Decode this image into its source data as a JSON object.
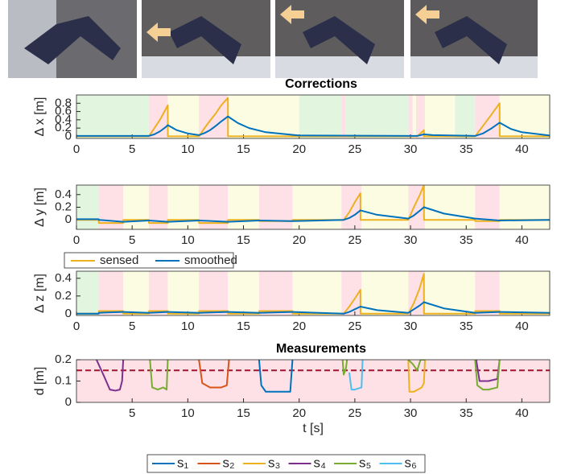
{
  "chart_data": [
    {
      "type": "line",
      "title": "Corrections",
      "ylabel": "Δ x [m]",
      "xlim": [
        0,
        42.5
      ],
      "xticks": [
        0,
        5,
        10,
        15,
        20,
        25,
        30,
        35,
        40
      ],
      "ylim": [
        -0.05,
        1.0
      ],
      "yticks": [
        0,
        0.2,
        0.4,
        0.6,
        0.8
      ],
      "regions": [
        {
          "start": 0,
          "end": 6.5,
          "color": "#e2f5df"
        },
        {
          "start": 6.5,
          "end": 8.2,
          "color": "#fde1e6"
        },
        {
          "start": 8.2,
          "end": 11,
          "color": "#fcfce2"
        },
        {
          "start": 11,
          "end": 13.6,
          "color": "#fde1e6"
        },
        {
          "start": 13.6,
          "end": 20,
          "color": "#fcfce2"
        },
        {
          "start": 20,
          "end": 23.8,
          "color": "#e2f5df"
        },
        {
          "start": 23.8,
          "end": 24.2,
          "color": "#fde1e6"
        },
        {
          "start": 24.2,
          "end": 29.8,
          "color": "#e2f5df"
        },
        {
          "start": 29.8,
          "end": 30.2,
          "color": "#fde1e6"
        },
        {
          "start": 30.2,
          "end": 30.5,
          "color": "#fcfce2"
        },
        {
          "start": 30.5,
          "end": 31.3,
          "color": "#fde1e6"
        },
        {
          "start": 31.3,
          "end": 34,
          "color": "#fcfce2"
        },
        {
          "start": 34,
          "end": 35.8,
          "color": "#e2f5df"
        },
        {
          "start": 35.8,
          "end": 38,
          "color": "#fde1e6"
        },
        {
          "start": 38,
          "end": 42.5,
          "color": "#fcfce2"
        }
      ],
      "x": [
        0,
        6.5,
        7,
        7.5,
        8,
        8.2,
        8.21,
        9,
        10,
        11,
        11.5,
        12,
        12.5,
        13,
        13.6,
        13.61,
        14.5,
        15.5,
        17,
        20,
        30.6,
        31.2,
        31.21,
        32,
        35.8,
        36.5,
        37.2,
        38,
        38.01,
        39,
        40,
        42.5
      ],
      "series": [
        {
          "color": "#edb120",
          "values": [
            0,
            0,
            0.2,
            0.4,
            0.65,
            0.75,
            0,
            0,
            0,
            0,
            0.2,
            0.38,
            0.55,
            0.75,
            0.93,
            0,
            0,
            0,
            0,
            0,
            0,
            0.15,
            0,
            0,
            0,
            0.25,
            0.5,
            0.8,
            0,
            0,
            0,
            0
          ]
        },
        {
          "color": "#0072bd",
          "values": [
            0.01,
            0.01,
            0.05,
            0.12,
            0.22,
            0.27,
            0.27,
            0.15,
            0.07,
            0.03,
            0.08,
            0.15,
            0.25,
            0.36,
            0.48,
            0.48,
            0.32,
            0.2,
            0.1,
            0.02,
            0.01,
            0.05,
            0.05,
            0.03,
            0.01,
            0.07,
            0.18,
            0.33,
            0.33,
            0.18,
            0.1,
            0.02
          ]
        }
      ]
    },
    {
      "type": "line",
      "ylabel": "Δ y [m]",
      "xlim": [
        0,
        42.5
      ],
      "xticks": [
        0,
        5,
        10,
        15,
        20,
        25,
        30,
        35,
        40
      ],
      "ylim": [
        -0.15,
        0.55
      ],
      "yticks": [
        0,
        0.2,
        0.4
      ],
      "regions": [
        {
          "start": 0,
          "end": 2,
          "color": "#e2f5df"
        },
        {
          "start": 2,
          "end": 4.2,
          "color": "#fde1e6"
        },
        {
          "start": 4.2,
          "end": 6.5,
          "color": "#fcfce2"
        },
        {
          "start": 6.5,
          "end": 8.2,
          "color": "#fde1e6"
        },
        {
          "start": 8.2,
          "end": 11,
          "color": "#fcfce2"
        },
        {
          "start": 11,
          "end": 13.6,
          "color": "#fde1e6"
        },
        {
          "start": 13.6,
          "end": 16.4,
          "color": "#fcfce2"
        },
        {
          "start": 16.4,
          "end": 19.4,
          "color": "#fde1e6"
        },
        {
          "start": 19.4,
          "end": 23.8,
          "color": "#fcfce2"
        },
        {
          "start": 23.8,
          "end": 25.6,
          "color": "#fde1e6"
        },
        {
          "start": 25.6,
          "end": 29.8,
          "color": "#fcfce2"
        },
        {
          "start": 29.8,
          "end": 31.3,
          "color": "#fde1e6"
        },
        {
          "start": 31.3,
          "end": 35.8,
          "color": "#fcfce2"
        },
        {
          "start": 35.8,
          "end": 38,
          "color": "#fde1e6"
        },
        {
          "start": 38,
          "end": 42.5,
          "color": "#fcfce2"
        }
      ],
      "x": [
        0,
        2,
        2.01,
        4.2,
        4.21,
        6.5,
        6.51,
        8.2,
        8.21,
        11,
        11.01,
        13.6,
        13.61,
        16.4,
        16.41,
        19.4,
        19.41,
        24,
        24.5,
        25,
        25.5,
        25.51,
        27,
        29.8,
        30.3,
        30.8,
        31.2,
        31.21,
        33,
        35.8,
        35.81,
        38,
        38.01,
        42.5
      ],
      "series": [
        {
          "name": "sensed",
          "color": "#edb120",
          "values": [
            0,
            0,
            -0.05,
            -0.05,
            0,
            0,
            -0.05,
            -0.05,
            0,
            0,
            -0.05,
            -0.05,
            0,
            0,
            -0.02,
            -0.02,
            0,
            0,
            0.12,
            0.28,
            0.42,
            0,
            0,
            0,
            0.2,
            0.38,
            0.55,
            0,
            0,
            0,
            -0.02,
            -0.02,
            0,
            0
          ]
        },
        {
          "name": "smoothed",
          "color": "#0072bd",
          "values": [
            0.01,
            0.01,
            0,
            -0.03,
            -0.03,
            -0.01,
            -0.01,
            -0.03,
            -0.03,
            -0.01,
            -0.01,
            -0.03,
            -0.03,
            -0.01,
            -0.01,
            -0.02,
            -0.02,
            0,
            0.03,
            0.08,
            0.15,
            0.15,
            0.08,
            0.02,
            0.07,
            0.14,
            0.2,
            0.2,
            0.1,
            0.02,
            0.02,
            -0.01,
            -0.01,
            0
          ]
        }
      ]
    },
    {
      "type": "line",
      "ylabel": "Δ z [m]",
      "xlim": [
        0,
        42.5
      ],
      "xticks": [
        0,
        5,
        10,
        15,
        20,
        25,
        30,
        35,
        40
      ],
      "ylim": [
        -0.02,
        0.48
      ],
      "yticks": [
        0,
        0.2,
        0.4
      ],
      "regions": [
        {
          "start": 0,
          "end": 2,
          "color": "#e2f5df"
        },
        {
          "start": 2,
          "end": 4.2,
          "color": "#fde1e6"
        },
        {
          "start": 4.2,
          "end": 6.5,
          "color": "#fcfce2"
        },
        {
          "start": 6.5,
          "end": 8.2,
          "color": "#fde1e6"
        },
        {
          "start": 8.2,
          "end": 11,
          "color": "#fcfce2"
        },
        {
          "start": 11,
          "end": 13.6,
          "color": "#fde1e6"
        },
        {
          "start": 13.6,
          "end": 16.4,
          "color": "#fcfce2"
        },
        {
          "start": 16.4,
          "end": 19.4,
          "color": "#fde1e6"
        },
        {
          "start": 19.4,
          "end": 23.8,
          "color": "#fcfce2"
        },
        {
          "start": 23.8,
          "end": 25.6,
          "color": "#fde1e6"
        },
        {
          "start": 25.6,
          "end": 29.8,
          "color": "#fcfce2"
        },
        {
          "start": 29.8,
          "end": 31.3,
          "color": "#fde1e6"
        },
        {
          "start": 31.3,
          "end": 35.8,
          "color": "#fcfce2"
        },
        {
          "start": 35.8,
          "end": 38,
          "color": "#fde1e6"
        },
        {
          "start": 38,
          "end": 42.5,
          "color": "#fcfce2"
        }
      ],
      "x": [
        0,
        2,
        2.01,
        4.2,
        4.21,
        6.5,
        6.51,
        8.2,
        8.21,
        11,
        11.01,
        13.6,
        13.61,
        16.4,
        16.41,
        19.4,
        19.41,
        24,
        24.5,
        25,
        25.5,
        25.51,
        27,
        29.8,
        30.3,
        30.8,
        31.2,
        31.21,
        33,
        35.8,
        35.81,
        38,
        38.01,
        42.5
      ],
      "series": [
        {
          "color": "#edb120",
          "values": [
            0,
            0,
            0.03,
            0.03,
            0,
            0,
            0.03,
            0.03,
            0,
            0,
            0.03,
            0.03,
            0,
            0,
            0.03,
            0.03,
            0,
            0,
            0.08,
            0.17,
            0.27,
            0,
            0,
            0,
            0.12,
            0.28,
            0.45,
            0,
            0,
            0,
            0.03,
            0.03,
            0,
            0
          ]
        },
        {
          "color": "#0072bd",
          "values": [
            0,
            0,
            0.01,
            0.02,
            0.02,
            0.01,
            0.01,
            0.02,
            0.02,
            0.01,
            0.01,
            0.02,
            0.02,
            0.01,
            0.01,
            0.02,
            0.02,
            0,
            0.02,
            0.05,
            0.08,
            0.08,
            0.04,
            0.01,
            0.05,
            0.09,
            0.13,
            0.13,
            0.06,
            0.01,
            0.01,
            0.02,
            0.02,
            0.01
          ]
        }
      ]
    },
    {
      "type": "line",
      "title": "Measurements",
      "ylabel": "d [m]",
      "xlabel": "t [s]",
      "xlim": [
        0,
        42.5
      ],
      "xticks": [
        5,
        10,
        15,
        20,
        25,
        30,
        35,
        40
      ],
      "ylim": [
        0,
        0.2
      ],
      "yticks": [
        0,
        0.1,
        0.2
      ],
      "background": "#fde1e6",
      "threshold": {
        "value": 0.15,
        "color": "#a2142f"
      },
      "series": [
        {
          "name": "s₁",
          "color": "#0072bd",
          "x": [
            16.4,
            16.6,
            17,
            18,
            19.2,
            19.4
          ],
          "values": [
            0.2,
            0.08,
            0.05,
            0.05,
            0.05,
            0.2
          ]
        },
        {
          "name": "s₂",
          "color": "#d95319",
          "x": [
            11,
            11.3,
            12,
            13,
            13.5,
            13.7
          ],
          "values": [
            0.2,
            0.09,
            0.07,
            0.07,
            0.08,
            0.2
          ]
        },
        {
          "name": "s₃",
          "color": "#edb120",
          "x": [
            29.8,
            29.9,
            30.3,
            31,
            31.2,
            31.3
          ],
          "values": [
            0.2,
            0.05,
            0.05,
            0.07,
            0.09,
            0.2
          ]
        },
        {
          "name": "s₄",
          "color": "#7e2f8e",
          "x": [
            1.8,
            2.5,
            3,
            3.5,
            3.9,
            4.1,
            4.2,
            20,
            35.9,
            36.2,
            37,
            37.8,
            38
          ],
          "values": [
            0.2,
            0.12,
            0.06,
            0.055,
            0.06,
            0.1,
            0.2,
            null,
            0.2,
            0.1,
            0.1,
            0.11,
            0.2
          ]
        },
        {
          "name": "s₅",
          "color": "#77ac30",
          "x": [
            6.6,
            6.8,
            7.3,
            7.8,
            8.1,
            8.2,
            20,
            23.9,
            24,
            24.2,
            24.3,
            27,
            29.8,
            30.2,
            30.6,
            30.9,
            31.3,
            33,
            35.8,
            36,
            36.5,
            37,
            37.8,
            38
          ],
          "values": [
            0.2,
            0.07,
            0.06,
            0.07,
            0.06,
            0.2,
            null,
            0.2,
            0.13,
            0.16,
            0.2,
            null,
            0.2,
            0.18,
            0.15,
            0.2,
            0.2,
            null,
            0.2,
            0.08,
            0.06,
            0.06,
            0.07,
            0.2
          ]
        },
        {
          "name": "s₆",
          "color": "#4dbeee",
          "x": [
            24.5,
            24.7,
            25,
            25.6,
            25.7
          ],
          "values": [
            0.14,
            0.06,
            0.06,
            0.07,
            0.2
          ]
        }
      ]
    }
  ]
}
